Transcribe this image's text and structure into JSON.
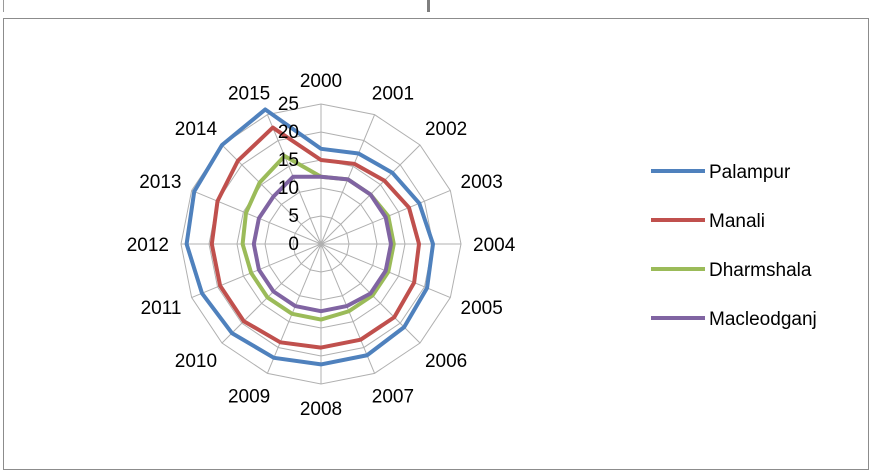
{
  "chart_data": {
    "type": "radar",
    "categories": [
      "2000",
      "2001",
      "2002",
      "2003",
      "2004",
      "2005",
      "2006",
      "2007",
      "2008",
      "2009",
      "2010",
      "2011",
      "2012",
      "2013",
      "2014",
      "2015"
    ],
    "radial_ticks": [
      "0",
      "5",
      "10",
      "15",
      "20",
      "25"
    ],
    "rlim": [
      0,
      25
    ],
    "legend_position": "right",
    "series": [
      {
        "name": "Palampur",
        "color": "#4F81BD",
        "values": [
          17,
          17.5,
          18,
          19,
          20,
          20.5,
          21,
          21.5,
          21.5,
          22,
          22.5,
          23,
          24,
          24.5,
          25,
          26
        ]
      },
      {
        "name": "Manali",
        "color": "#C0504D",
        "values": [
          15,
          15.5,
          16,
          17,
          17.5,
          18,
          18.5,
          18.5,
          18.5,
          19,
          19.5,
          19.5,
          19.5,
          20,
          21,
          22.5
        ]
      },
      {
        "name": "Dharmshala",
        "color": "#9BBB59",
        "values": [
          12,
          12.5,
          12.5,
          13,
          13,
          13,
          13,
          13,
          13.5,
          13.5,
          13.5,
          13.5,
          14,
          14.5,
          15.5,
          17
        ]
      },
      {
        "name": "Macleodganj",
        "color": "#8064A2",
        "values": [
          12,
          12.5,
          12.5,
          12.5,
          12.5,
          12.5,
          12.5,
          12,
          12,
          12,
          12,
          12,
          12,
          12,
          12,
          13
        ]
      }
    ]
  }
}
